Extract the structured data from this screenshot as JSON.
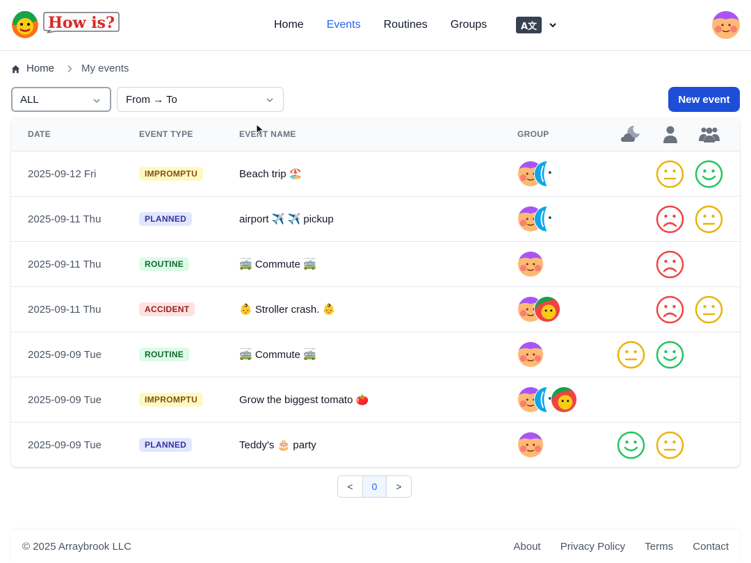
{
  "header": {
    "logo_text": "How is?",
    "nav": [
      {
        "label": "Home",
        "active": false
      },
      {
        "label": "Events",
        "active": true
      },
      {
        "label": "Routines",
        "active": false
      },
      {
        "label": "Groups",
        "active": false
      }
    ],
    "language_icon_text": "A文",
    "accent_color": "#2563eb"
  },
  "breadcrumb": {
    "home": "Home",
    "current": "My events"
  },
  "filters": {
    "type_selected": "ALL",
    "date_range": "From → To"
  },
  "actions": {
    "new_event": "New event"
  },
  "table": {
    "headers": {
      "date": "DATE",
      "event_type": "EVENT TYPE",
      "event_name": "EVENT NAME",
      "group": "GROUP"
    },
    "header_icons": [
      "moon-cloud-icon",
      "person-icon",
      "people-icon"
    ],
    "rows": [
      {
        "date": "2025-09-12 Fri",
        "type": "IMPROMPTU",
        "type_key": "impromptu",
        "name": "Beach trip 🏖️",
        "group": [
          "avatar-kid",
          "avatar-blue"
        ],
        "moods": [
          null,
          "neutral",
          "happy"
        ]
      },
      {
        "date": "2025-09-11 Thu",
        "type": "PLANNED",
        "type_key": "planned",
        "name": "airport ✈️ ✈️ pickup",
        "group": [
          "avatar-kid",
          "avatar-blue"
        ],
        "moods": [
          null,
          "sad",
          "neutral"
        ]
      },
      {
        "date": "2025-09-11 Thu",
        "type": "ROUTINE",
        "type_key": "routine",
        "name": "🚎 Commute 🚎",
        "group": [
          "avatar-kid"
        ],
        "moods": [
          null,
          "sad",
          null
        ]
      },
      {
        "date": "2025-09-11 Thu",
        "type": "ACCIDENT",
        "type_key": "accident",
        "name": "👶 Stroller crash. 👶",
        "group": [
          "avatar-kid",
          "avatar-green"
        ],
        "moods": [
          null,
          "sad",
          "neutral"
        ]
      },
      {
        "date": "2025-09-09 Tue",
        "type": "ROUTINE",
        "type_key": "routine",
        "name": "🚎 Commute 🚎",
        "group": [
          "avatar-kid"
        ],
        "moods": [
          "neutral",
          "happy",
          null
        ]
      },
      {
        "date": "2025-09-09 Tue",
        "type": "IMPROMPTU",
        "type_key": "impromptu",
        "name": "Grow the biggest tomato 🍅",
        "group": [
          "avatar-kid",
          "avatar-blue",
          "avatar-green"
        ],
        "moods": [
          null,
          null,
          null
        ]
      },
      {
        "date": "2025-09-09 Tue",
        "type": "PLANNED",
        "type_key": "planned",
        "name": "Teddy's 🎂 party",
        "group": [
          "avatar-kid"
        ],
        "moods": [
          "happy",
          "neutral",
          null
        ]
      }
    ]
  },
  "pagination": {
    "prev": "<",
    "page": "0",
    "next": ">"
  },
  "footer": {
    "copyright": "© 2025 Arraybrook LLC",
    "links": [
      "About",
      "Privacy Policy",
      "Terms",
      "Contact"
    ]
  }
}
